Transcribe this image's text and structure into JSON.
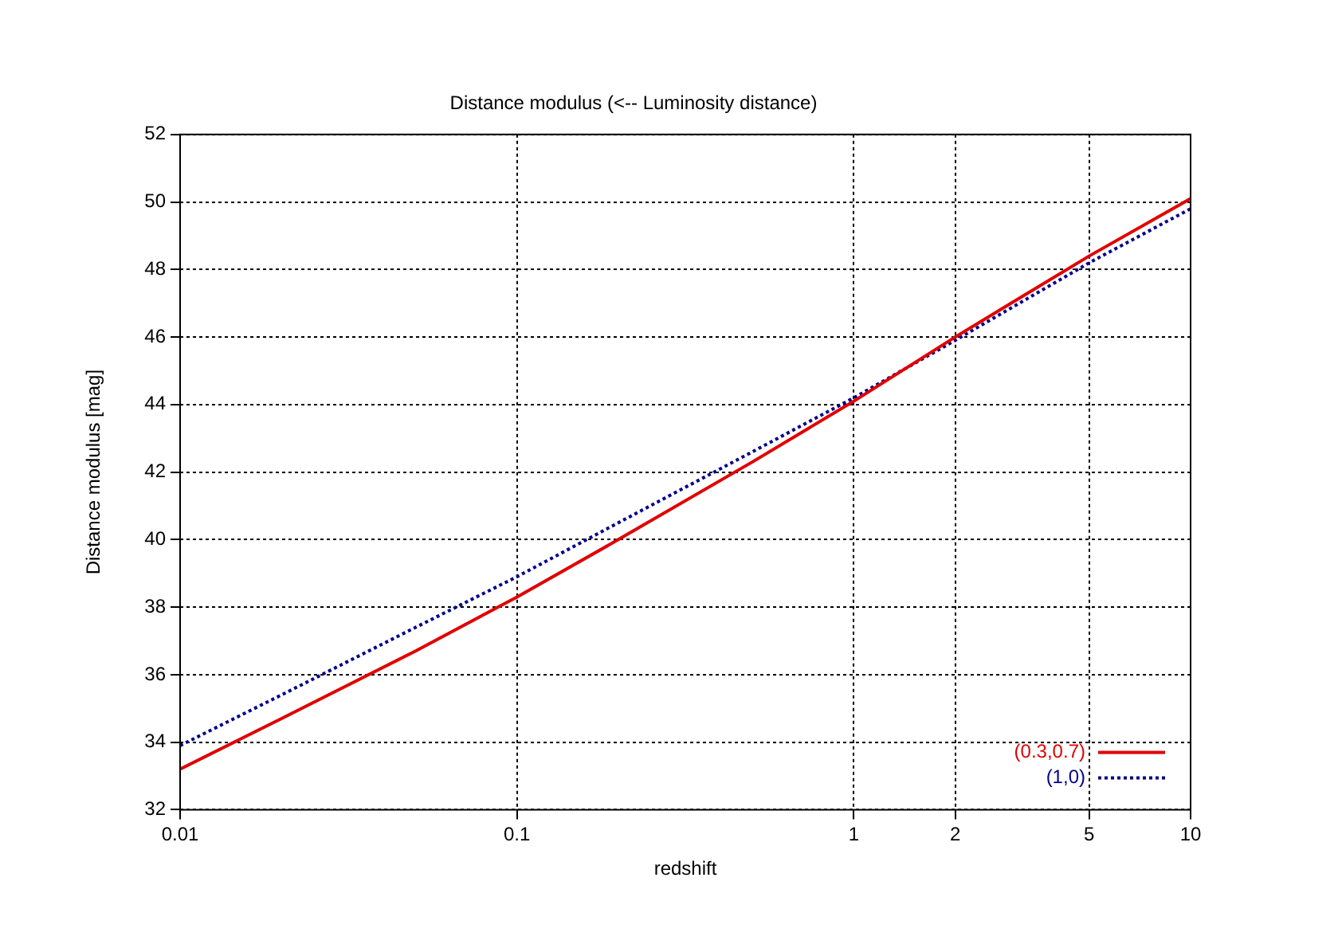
{
  "chart_data": {
    "type": "line",
    "title": "Distance modulus (<-- Luminosity distance)",
    "xlabel": "redshift",
    "ylabel": "Distance modulus [mag]",
    "x": [
      0.01,
      0.02,
      0.05,
      0.1,
      0.2,
      0.5,
      1,
      2,
      5,
      10
    ],
    "series": [
      {
        "name": "(0.3,0.7)",
        "color": "#e00000",
        "line_style": "solid",
        "values": [
          33.2,
          34.7,
          36.7,
          38.3,
          40.0,
          42.3,
          44.1,
          46.0,
          48.4,
          50.1
        ]
      },
      {
        "name": "(1,0)",
        "color": "#00008b",
        "line_style": "dotted",
        "values": [
          33.9,
          35.4,
          37.4,
          38.9,
          40.5,
          42.6,
          44.2,
          45.9,
          48.2,
          49.8
        ]
      }
    ],
    "log": "x",
    "xlim": [
      0.01,
      10
    ],
    "xticks": [
      0.01,
      0.1,
      1,
      2,
      5,
      10
    ],
    "ylim": [
      32,
      52
    ],
    "yticks": [
      32,
      34,
      36,
      38,
      40,
      42,
      44,
      46,
      48,
      50,
      52
    ],
    "grid": true,
    "legend": "bottom right",
    "marker": "none"
  }
}
